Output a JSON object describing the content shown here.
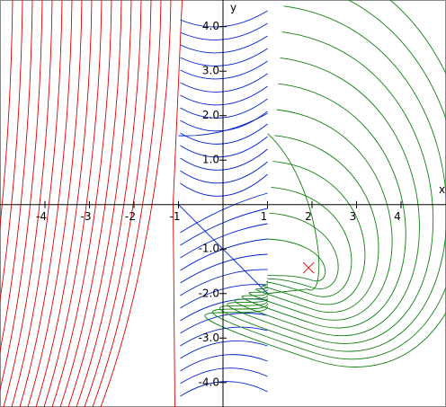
{
  "chart_data": {
    "type": "phase-portrait",
    "x_label": "x",
    "y_label": "y",
    "xlim": [
      -5.01,
      5.01
    ],
    "ylim": [
      -4.55,
      4.6
    ],
    "xticks": [
      -4,
      -3,
      -2,
      -1,
      1,
      2,
      3,
      4
    ],
    "yticks": [
      {
        "value": 4,
        "label": "4.0"
      },
      {
        "value": 3,
        "label": "3.0"
      },
      {
        "value": 2,
        "label": "2.0"
      },
      {
        "value": 1,
        "label": "1.0"
      },
      {
        "value": -1,
        "label": "-1.0"
      },
      {
        "value": -2,
        "label": "-2.0"
      },
      {
        "value": -3,
        "label": "-3.0"
      },
      {
        "value": -4,
        "label": "-4.0"
      }
    ]
  }
}
